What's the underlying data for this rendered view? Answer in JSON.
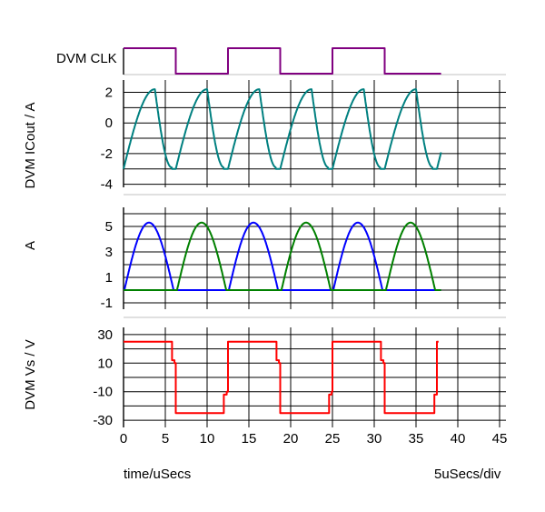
{
  "chart_data": [
    {
      "type": "line",
      "panel": "clk",
      "ylabel": "DVM CLK",
      "xlim": [
        0,
        45
      ],
      "series": [
        {
          "color": "#800080",
          "x": [
            0,
            6.25,
            6.25,
            12.5,
            12.5,
            18.75,
            18.75,
            25,
            25,
            31.25,
            31.25,
            38
          ],
          "y": [
            1,
            1,
            0,
            0,
            1,
            1,
            0,
            0,
            1,
            1,
            0,
            0
          ]
        }
      ]
    },
    {
      "type": "line",
      "panel": "icout",
      "ylabel": "DVM ICout / A",
      "xlim": [
        0,
        45
      ],
      "ylim": [
        -4.2,
        2.8
      ],
      "yticks": [
        "2",
        "0",
        "-2",
        "-4"
      ],
      "yticks_values": [
        2,
        0,
        -2,
        -4
      ],
      "series": [
        {
          "color": "#008080",
          "shape": "icout",
          "period": 6.25,
          "amp": 2.2,
          "trough": -3.0,
          "x_end": 38
        }
      ]
    },
    {
      "type": "line",
      "panel": "currents",
      "ylabel": "A",
      "xlim": [
        0,
        45
      ],
      "ylim": [
        -1.5,
        6.5
      ],
      "yticks": [
        "5",
        "3",
        "1",
        "-1"
      ],
      "yticks_values": [
        5,
        3,
        1,
        -1
      ],
      "series": [
        {
          "color": "#0000ff",
          "peaks": [
            3.2,
            15.7,
            28.2
          ],
          "peak": 5.3
        },
        {
          "color": "#008000",
          "peaks": [
            9.5,
            22.0,
            34.5
          ],
          "peak": 5.3
        }
      ]
    },
    {
      "type": "line",
      "panel": "vs",
      "ylabel": "DVM Vs / V",
      "xlim": [
        0,
        45
      ],
      "ylim": [
        -35,
        35
      ],
      "yticks": [
        "30",
        "10",
        "-10",
        "-30"
      ],
      "yticks_values": [
        30,
        10,
        -10,
        -30
      ],
      "xticks": [
        "0",
        "5",
        "10",
        "15",
        "20",
        "25",
        "30",
        "35",
        "40",
        "45"
      ],
      "xticks_values": [
        0,
        5,
        10,
        15,
        20,
        25,
        30,
        35,
        40,
        45
      ],
      "series": [
        {
          "color": "#ff0000",
          "x": [
            0,
            5.8,
            5.8,
            6.1,
            6.1,
            6.25,
            6.25,
            12.0,
            12.0,
            12.35,
            12.35,
            12.5,
            12.5,
            18.3,
            18.3,
            18.6,
            18.6,
            18.75,
            18.75,
            24.6,
            24.6,
            24.9,
            24.9,
            25.0,
            25.0,
            30.8,
            30.8,
            31.1,
            31.1,
            31.25,
            31.25,
            37.2,
            37.2,
            37.5,
            37.5,
            37.7
          ],
          "y": [
            25,
            25,
            12,
            12,
            10,
            10,
            -25,
            -25,
            -12,
            -12,
            -10,
            -10,
            25,
            25,
            12,
            12,
            10,
            10,
            -25,
            -25,
            -12,
            -12,
            -10,
            -10,
            25,
            25,
            12,
            12,
            10,
            10,
            -25,
            -25,
            -12,
            -12,
            25,
            25
          ]
        }
      ]
    }
  ],
  "footer": {
    "xlabel": "time/uSecs",
    "scale": "5uSecs/div"
  }
}
